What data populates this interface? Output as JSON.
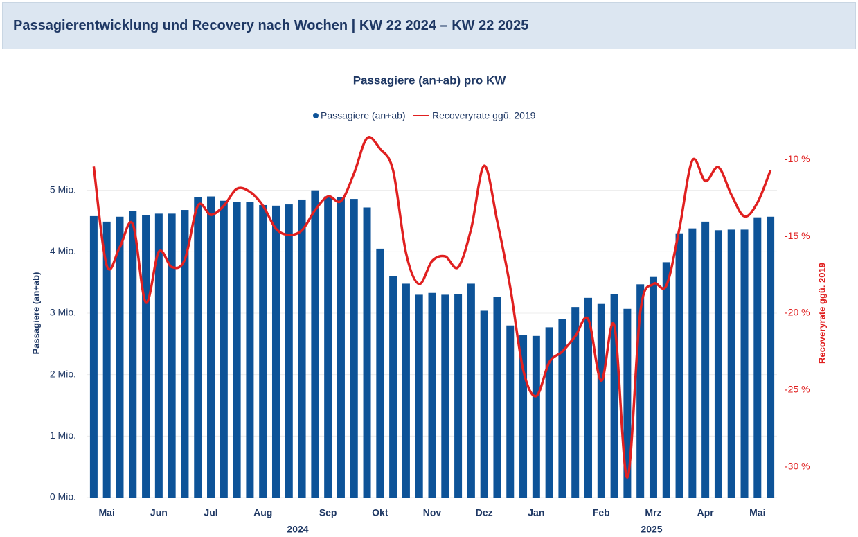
{
  "header": {
    "title": "Passagierentwicklung und Recovery nach Wochen | KW 22 2024 – KW 22 2025"
  },
  "chart_data": {
    "type": "bar-line",
    "title": "Passagiere (an+ab) pro KW",
    "y_label": "Passagiere (an+ab)",
    "y2_label": "Recoveryrate ggü. 2019",
    "categories": [
      null,
      "Mai",
      null,
      null,
      null,
      "Jun",
      null,
      null,
      null,
      "Jul",
      null,
      null,
      null,
      "Aug",
      null,
      null,
      null,
      null,
      "Sep",
      null,
      null,
      null,
      "Okt",
      null,
      null,
      null,
      "Nov",
      null,
      null,
      null,
      "Dez",
      null,
      null,
      null,
      "Jan",
      null,
      null,
      null,
      null,
      "Feb",
      null,
      null,
      null,
      "Mrz",
      null,
      null,
      null,
      "Apr",
      null,
      null,
      null,
      "Mai",
      null
    ],
    "x_groups": [
      "2024",
      "2025"
    ],
    "series": [
      {
        "name": "Passagiere (an+ab)",
        "color": "#0d5398",
        "type": "bar",
        "values": [
          4.58,
          4.49,
          4.57,
          4.66,
          4.6,
          4.62,
          4.62,
          4.68,
          4.89,
          4.9,
          4.83,
          4.81,
          4.81,
          4.76,
          4.75,
          4.77,
          4.85,
          5.0,
          4.9,
          4.89,
          4.86,
          4.72,
          4.05,
          3.6,
          3.48,
          3.3,
          3.33,
          3.3,
          3.31,
          3.48,
          3.04,
          3.27,
          2.8,
          2.64,
          2.63,
          2.77,
          2.9,
          3.1,
          3.25,
          3.15,
          3.31,
          3.07,
          3.47,
          3.59,
          3.83,
          4.3,
          4.38,
          4.49,
          4.35,
          4.36,
          4.36,
          4.56,
          4.57
        ]
      },
      {
        "name": "Recoveryrate ggü. 2019",
        "color": "#e02020",
        "type": "line",
        "axis": "y2",
        "values": [
          -10.45,
          -16.9,
          -15.7,
          -14.2,
          -19.3,
          -16.0,
          -17.0,
          -16.5,
          -13.0,
          -13.6,
          -13.0,
          -11.9,
          -12.1,
          -13.0,
          -14.5,
          -14.9,
          -14.6,
          -13.3,
          -12.4,
          -12.7,
          -10.9,
          -8.6,
          -9.3,
          -10.7,
          -16.1,
          -18.1,
          -16.6,
          -16.3,
          -17.0,
          -14.5,
          -10.4,
          -14.0,
          -18.3,
          -23.7,
          -25.4,
          -23.2,
          -22.5,
          -21.5,
          -20.4,
          -24.4,
          -20.8,
          -30.7,
          -19.9,
          -18.1,
          -18.2,
          -14.5,
          -10.05,
          -11.4,
          -10.5,
          -12.3,
          -13.7,
          -12.8,
          -10.7
        ]
      }
    ],
    "ylim": [
      0,
      6
    ],
    "yticks": [
      {
        "value": 0,
        "label": "0 Mio."
      },
      {
        "value": 1,
        "label": "1 Mio."
      },
      {
        "value": 2,
        "label": "2 Mio."
      },
      {
        "value": 3,
        "label": "3 Mio."
      },
      {
        "value": 4,
        "label": "4 Mio."
      },
      {
        "value": 5,
        "label": "5 Mio."
      }
    ],
    "y2lim": [
      -32,
      -8
    ],
    "y2ticks": [
      {
        "value": -10,
        "label": "-10 %"
      },
      {
        "value": -15,
        "label": "-15 %"
      },
      {
        "value": -20,
        "label": "-20 %"
      },
      {
        "value": -25,
        "label": "-25 %"
      },
      {
        "value": -30,
        "label": "-30 %"
      }
    ],
    "grid": true
  }
}
